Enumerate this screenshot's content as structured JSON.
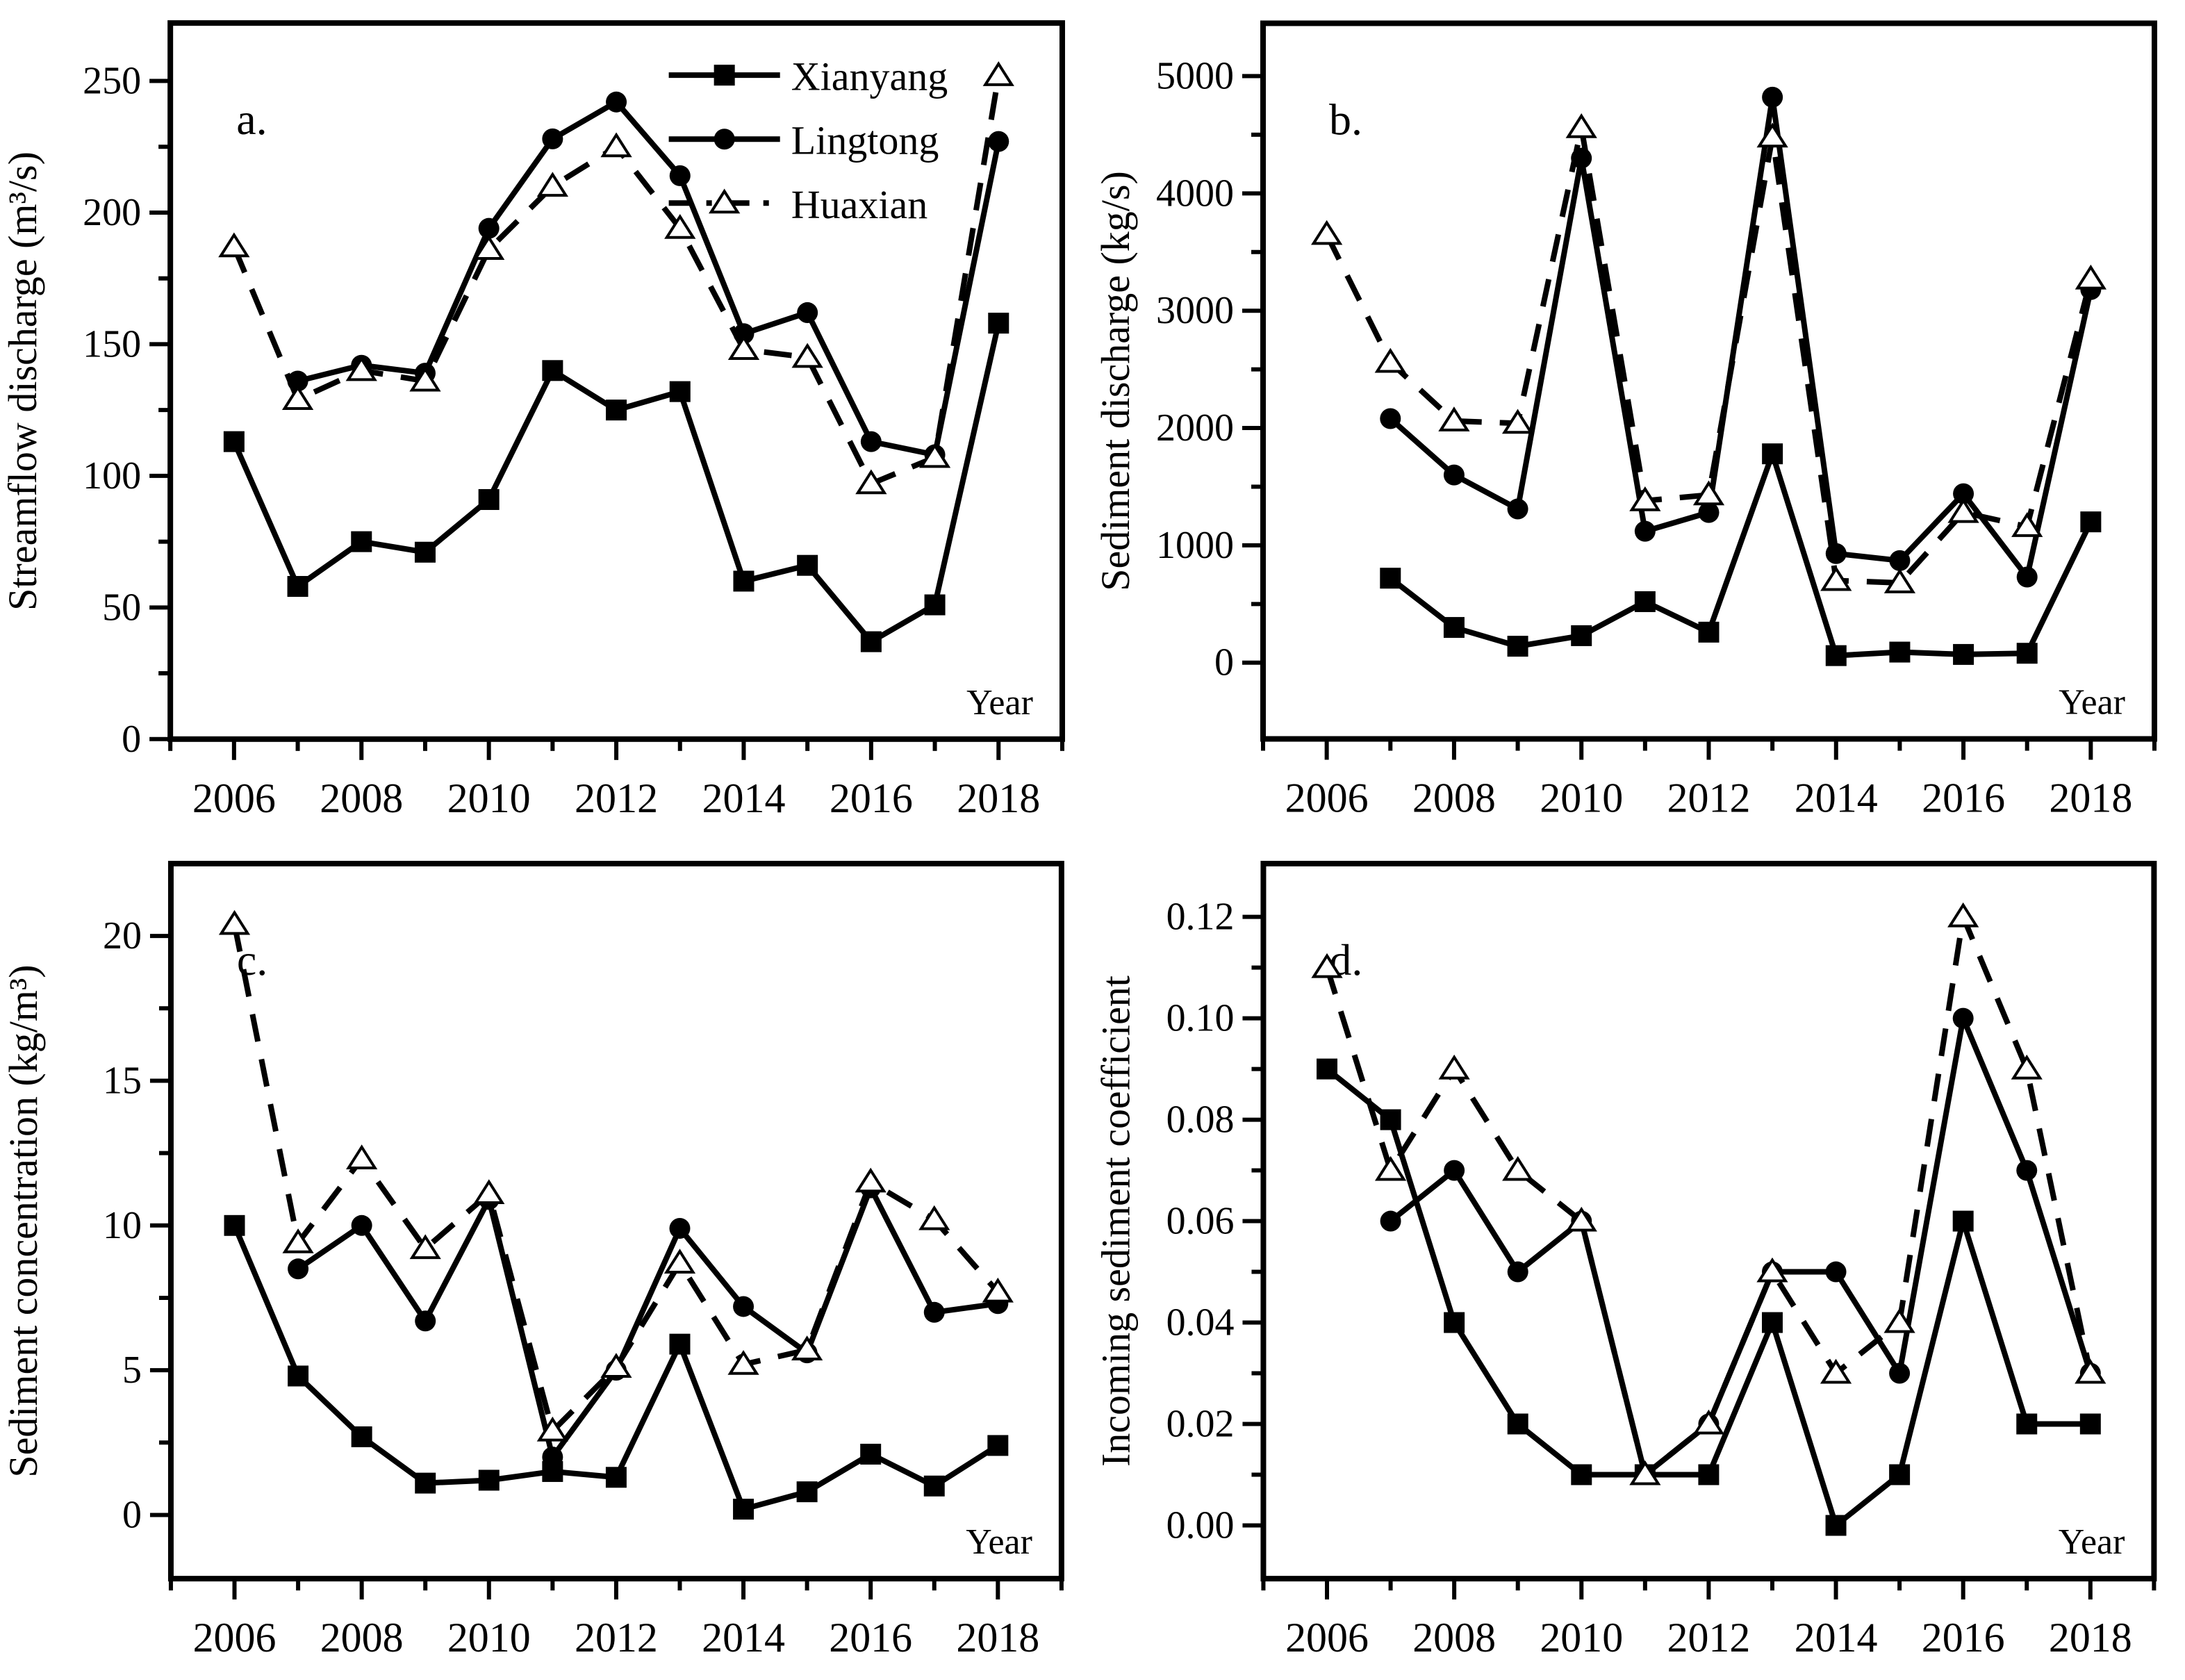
{
  "figure": {
    "background": "#ffffff",
    "ink_color": "#000000",
    "x_axis_label": "Year",
    "years": [
      2006,
      2007,
      2008,
      2009,
      2010,
      2011,
      2012,
      2013,
      2014,
      2015,
      2016,
      2017,
      2018
    ]
  },
  "legend": {
    "position": "top-right-of-panel-a",
    "items": [
      {
        "label": "Xianyang",
        "marker": "square-filled",
        "line": "solid"
      },
      {
        "label": "Lingtong",
        "marker": "circle-filled",
        "line": "solid"
      },
      {
        "label": "Huaxian",
        "marker": "triangle-open",
        "line": "dashed"
      }
    ]
  },
  "chart_data": [
    {
      "id": "a",
      "type": "line",
      "panel_letter": "a.",
      "ylabel": "Streamflow discharge (m³/s)",
      "xlabel": "Year",
      "xlim": [
        2005,
        2019
      ],
      "ylim": [
        0,
        272
      ],
      "grid": false,
      "show_legend": true,
      "x": [
        2006,
        2007,
        2008,
        2009,
        2010,
        2011,
        2012,
        2013,
        2014,
        2015,
        2016,
        2017,
        2018
      ],
      "yticks_major": [
        {
          "v": 0,
          "label": "0"
        },
        {
          "v": 50,
          "label": "50"
        },
        {
          "v": 100,
          "label": "100"
        },
        {
          "v": 150,
          "label": "150"
        },
        {
          "v": 200,
          "label": "200"
        },
        {
          "v": 250,
          "label": "250"
        }
      ],
      "yticks_minor": [
        25,
        75,
        125,
        175,
        225
      ],
      "xticks_major": [
        {
          "v": 2006,
          "label": "2006"
        },
        {
          "v": 2008,
          "label": "2008"
        },
        {
          "v": 2010,
          "label": "2010"
        },
        {
          "v": 2012,
          "label": "2012"
        },
        {
          "v": 2014,
          "label": "2014"
        },
        {
          "v": 2016,
          "label": "2016"
        },
        {
          "v": 2018,
          "label": "2018"
        }
      ],
      "xticks_minor": [
        2005,
        2007,
        2009,
        2011,
        2013,
        2015,
        2017,
        2019
      ],
      "series": [
        {
          "name": "Xianyang",
          "marker": "square-filled",
          "line": "solid",
          "values": [
            113,
            58,
            75,
            71,
            91,
            140,
            125,
            132,
            60,
            66,
            37,
            51,
            158
          ]
        },
        {
          "name": "Lingtong",
          "marker": "circle-filled",
          "line": "solid",
          "values": [
            null,
            136,
            142,
            139,
            194,
            228,
            242,
            214,
            154,
            162,
            113,
            108,
            227
          ]
        },
        {
          "name": "Huaxian",
          "marker": "triangle-open",
          "line": "dashed",
          "values": [
            187,
            129,
            140,
            136,
            186,
            210,
            225,
            194,
            148,
            145,
            97,
            107,
            252
          ]
        }
      ]
    },
    {
      "id": "b",
      "type": "line",
      "panel_letter": "b.",
      "ylabel": "Sediment discharge (kg/s)",
      "xlabel": "Year",
      "xlim": [
        2005,
        2019
      ],
      "ylim": [
        -650,
        5450
      ],
      "grid": false,
      "show_legend": false,
      "x": [
        2006,
        2007,
        2008,
        2009,
        2010,
        2011,
        2012,
        2013,
        2014,
        2015,
        2016,
        2017,
        2018
      ],
      "yticks_major": [
        {
          "v": 0,
          "label": "0"
        },
        {
          "v": 1000,
          "label": "1000"
        },
        {
          "v": 2000,
          "label": "2000"
        },
        {
          "v": 3000,
          "label": "3000"
        },
        {
          "v": 4000,
          "label": "4000"
        },
        {
          "v": 5000,
          "label": "5000"
        }
      ],
      "yticks_minor": [
        500,
        1500,
        2500,
        3500,
        4500
      ],
      "xticks_major": [
        {
          "v": 2006,
          "label": "2006"
        },
        {
          "v": 2008,
          "label": "2008"
        },
        {
          "v": 2010,
          "label": "2010"
        },
        {
          "v": 2012,
          "label": "2012"
        },
        {
          "v": 2014,
          "label": "2014"
        },
        {
          "v": 2016,
          "label": "2016"
        },
        {
          "v": 2018,
          "label": "2018"
        }
      ],
      "xticks_minor": [
        2005,
        2007,
        2009,
        2011,
        2013,
        2015,
        2017,
        2019
      ],
      "series": [
        {
          "name": "Xianyang",
          "marker": "square-filled",
          "line": "solid",
          "values": [
            null,
            720,
            300,
            140,
            230,
            520,
            260,
            1780,
            60,
            90,
            70,
            80,
            1200
          ]
        },
        {
          "name": "Lingtong",
          "marker": "circle-filled",
          "line": "solid",
          "values": [
            null,
            2080,
            1600,
            1310,
            4300,
            1120,
            1280,
            4820,
            930,
            870,
            1440,
            730,
            3180
          ]
        },
        {
          "name": "Huaxian",
          "marker": "triangle-open",
          "line": "dashed",
          "values": [
            3650,
            2560,
            2060,
            2040,
            4560,
            1380,
            1430,
            4480,
            700,
            680,
            1280,
            1160,
            3270
          ]
        }
      ]
    },
    {
      "id": "c",
      "type": "line",
      "panel_letter": "c.",
      "ylabel": "Sediment concentration (kg/m³)",
      "xlabel": "Year",
      "xlim": [
        2005,
        2019
      ],
      "ylim": [
        -2.2,
        22.5
      ],
      "grid": false,
      "show_legend": false,
      "x": [
        2006,
        2007,
        2008,
        2009,
        2010,
        2011,
        2012,
        2013,
        2014,
        2015,
        2016,
        2017,
        2018
      ],
      "yticks_major": [
        {
          "v": 0,
          "label": "0"
        },
        {
          "v": 5,
          "label": "5"
        },
        {
          "v": 10,
          "label": "10"
        },
        {
          "v": 15,
          "label": "15"
        },
        {
          "v": 20,
          "label": "20"
        }
      ],
      "yticks_minor": [
        2.5,
        7.5,
        12.5,
        17.5
      ],
      "xticks_major": [
        {
          "v": 2006,
          "label": "2006"
        },
        {
          "v": 2008,
          "label": "2008"
        },
        {
          "v": 2010,
          "label": "2010"
        },
        {
          "v": 2012,
          "label": "2012"
        },
        {
          "v": 2014,
          "label": "2014"
        },
        {
          "v": 2016,
          "label": "2016"
        },
        {
          "v": 2018,
          "label": "2018"
        }
      ],
      "xticks_minor": [
        2005,
        2007,
        2009,
        2011,
        2013,
        2015,
        2017,
        2019
      ],
      "series": [
        {
          "name": "Xianyang",
          "marker": "square-filled",
          "line": "solid",
          "values": [
            10.0,
            4.8,
            2.7,
            1.1,
            1.2,
            1.5,
            1.3,
            5.9,
            0.2,
            0.8,
            2.1,
            1.0,
            2.4
          ]
        },
        {
          "name": "Lingtong",
          "marker": "circle-filled",
          "line": "solid",
          "values": [
            null,
            8.5,
            10.0,
            6.7,
            10.9,
            2.0,
            5.0,
            9.9,
            7.2,
            5.6,
            11.3,
            7.0,
            7.3
          ]
        },
        {
          "name": "Huaxian",
          "marker": "triangle-open",
          "line": "dashed",
          "values": [
            20.4,
            9.4,
            12.3,
            9.2,
            11.1,
            2.9,
            5.1,
            8.7,
            5.2,
            5.7,
            11.5,
            10.2,
            7.7
          ]
        }
      ]
    },
    {
      "id": "d",
      "type": "line",
      "panel_letter": "d.",
      "ylabel": "Incoming sediment coefficient",
      "xlabel": "Year",
      "xlim": [
        2005,
        2019
      ],
      "ylim": [
        -0.0105,
        0.1305
      ],
      "grid": false,
      "show_legend": false,
      "x": [
        2006,
        2007,
        2008,
        2009,
        2010,
        2011,
        2012,
        2013,
        2014,
        2015,
        2016,
        2017,
        2018
      ],
      "yticks_major": [
        {
          "v": 0.0,
          "label": "0.00"
        },
        {
          "v": 0.02,
          "label": "0.02"
        },
        {
          "v": 0.04,
          "label": "0.04"
        },
        {
          "v": 0.06,
          "label": "0.06"
        },
        {
          "v": 0.08,
          "label": "0.08"
        },
        {
          "v": 0.1,
          "label": "0.10"
        },
        {
          "v": 0.12,
          "label": "0.12"
        }
      ],
      "yticks_minor": [
        0.01,
        0.03,
        0.05,
        0.07,
        0.09,
        0.11
      ],
      "xticks_major": [
        {
          "v": 2006,
          "label": "2006"
        },
        {
          "v": 2008,
          "label": "2008"
        },
        {
          "v": 2010,
          "label": "2010"
        },
        {
          "v": 2012,
          "label": "2012"
        },
        {
          "v": 2014,
          "label": "2014"
        },
        {
          "v": 2016,
          "label": "2016"
        },
        {
          "v": 2018,
          "label": "2018"
        }
      ],
      "xticks_minor": [
        2005,
        2007,
        2009,
        2011,
        2013,
        2015,
        2017,
        2019
      ],
      "series": [
        {
          "name": "Xianyang",
          "marker": "square-filled",
          "line": "solid",
          "values": [
            0.09,
            0.08,
            0.04,
            0.02,
            0.01,
            0.01,
            0.01,
            0.04,
            0.0,
            0.01,
            0.06,
            0.02,
            0.02
          ]
        },
        {
          "name": "Lingtong",
          "marker": "circle-filled",
          "line": "solid",
          "values": [
            null,
            0.06,
            0.07,
            0.05,
            0.06,
            0.01,
            0.02,
            0.05,
            0.05,
            0.03,
            0.1,
            0.07,
            0.03
          ]
        },
        {
          "name": "Huaxian",
          "marker": "triangle-open",
          "line": "dashed",
          "values": [
            0.11,
            0.07,
            0.09,
            0.07,
            0.06,
            0.01,
            0.02,
            0.05,
            0.03,
            0.04,
            0.12,
            0.09,
            0.03
          ]
        }
      ]
    }
  ]
}
